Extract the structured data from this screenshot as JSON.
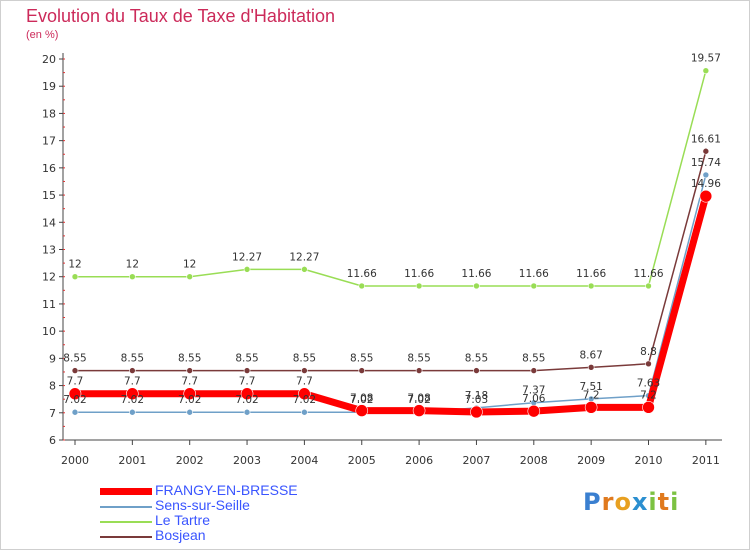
{
  "chart_data": {
    "type": "line",
    "title": "Evolution du Taux de Taxe d'Habitation",
    "subtitle": "(en %)",
    "x": [
      "2000",
      "2001",
      "2002",
      "2003",
      "2004",
      "2005",
      "2006",
      "2007",
      "2008",
      "2009",
      "2010",
      "2011"
    ],
    "ylim": [
      6,
      20
    ],
    "yticks": [
      6,
      7,
      8,
      9,
      10,
      11,
      12,
      13,
      14,
      15,
      16,
      17,
      18,
      19,
      20
    ],
    "grid": false,
    "legend_position": "bottom-left",
    "series": [
      {
        "name": "FRANGY-EN-BRESSE",
        "color": "#ff0000",
        "values": [
          7.7,
          7.7,
          7.7,
          7.7,
          7.7,
          7.08,
          7.08,
          7.03,
          7.06,
          7.2,
          7.2,
          14.96
        ],
        "labels": [
          "7.7",
          "7.7",
          "7.7",
          "7.7",
          "7.7",
          "7.08",
          "7.08",
          "7.03",
          "7.06",
          "7.2",
          "7.2",
          "14.96"
        ]
      },
      {
        "name": "Sens-sur-Seille",
        "color": "#6fa0c8",
        "values": [
          7.02,
          7.02,
          7.02,
          7.02,
          7.02,
          7.02,
          7.02,
          7.18,
          7.37,
          7.51,
          7.63,
          15.74
        ],
        "labels": [
          "7.02",
          "7.02",
          "7.02",
          "7.02",
          "7.02",
          "7.02",
          "7.02",
          "7.18",
          "7.37",
          "7.51",
          "7.63",
          "15.74"
        ]
      },
      {
        "name": "Le Tartre",
        "color": "#99dd55",
        "values": [
          12,
          12,
          12,
          12.27,
          12.27,
          11.66,
          11.66,
          11.66,
          11.66,
          11.66,
          11.66,
          19.57
        ],
        "labels": [
          "12",
          "12",
          "12",
          "12.27",
          "12.27",
          "11.66",
          "11.66",
          "11.66",
          "11.66",
          "11.66",
          "11.66",
          "19.57"
        ]
      },
      {
        "name": "Bosjean",
        "color": "#7a3a3a",
        "values": [
          8.55,
          8.55,
          8.55,
          8.55,
          8.55,
          8.55,
          8.55,
          8.55,
          8.55,
          8.67,
          8.8,
          16.61
        ],
        "labels": [
          "8.55",
          "8.55",
          "8.55",
          "8.55",
          "8.55",
          "8.55",
          "8.55",
          "8.55",
          "8.55",
          "8.67",
          "8.8",
          "16.61"
        ]
      }
    ]
  },
  "legend": {
    "items": [
      {
        "label": "FRANGY-EN-BRESSE",
        "color": "#ff0000"
      },
      {
        "label": "Sens-sur-Seille",
        "color": "#6fa0c8"
      },
      {
        "label": "Le Tartre",
        "color": "#99dd55"
      },
      {
        "label": "Bosjean",
        "color": "#7a3a3a"
      }
    ]
  },
  "logo": {
    "letters": [
      "P",
      "r",
      "o",
      "x",
      "i",
      "t",
      "i"
    ],
    "colors": [
      "#3a7fd0",
      "#e07a1e",
      "#e8a020",
      "#2b8fd0",
      "#7cc242",
      "#e07a1e",
      "#7cc242"
    ]
  }
}
